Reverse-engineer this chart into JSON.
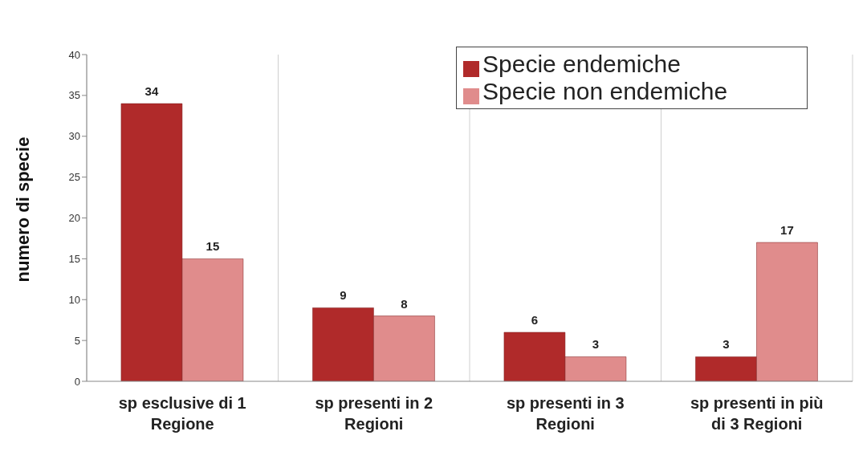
{
  "chart_data": {
    "type": "bar",
    "ylabel": "numero di specie",
    "categories": [
      "sp esclusive di 1 Regione",
      "sp presenti in 2 Regioni",
      "sp presenti in 3 Regioni",
      "sp presenti in più di 3 Regioni"
    ],
    "series": [
      {
        "name": "Specie endemiche",
        "color": "#b02a2a",
        "values": [
          34,
          9,
          6,
          3
        ]
      },
      {
        "name": "Specie non endemiche",
        "color": "#e08c8c",
        "values": [
          15,
          8,
          3,
          17
        ]
      }
    ],
    "ylim": [
      0,
      40
    ],
    "yticks": [
      0,
      5,
      10,
      15,
      20,
      25,
      30,
      35,
      40
    ],
    "grid": "x",
    "legend": "top right",
    "data_labels": true
  }
}
